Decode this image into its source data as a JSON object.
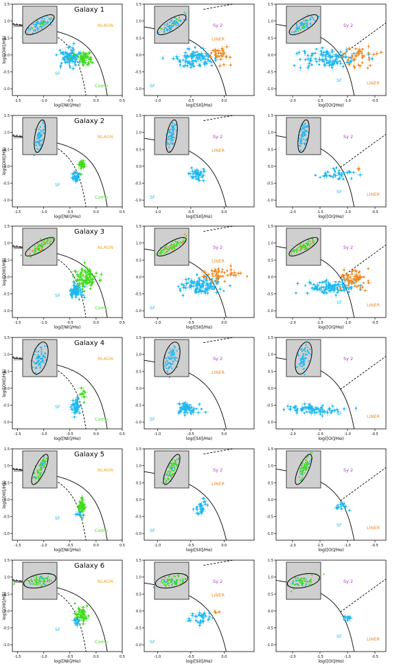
{
  "figure": {
    "colors": {
      "sf": "#1fb8f0",
      "comp": "#3ddc1a",
      "agn": "#f08a24",
      "sy2": "#b12fd6",
      "nlagn_text": "#f2a71b",
      "inset_bg": "#cfcfcf"
    },
    "ylabel": "log([OIII]/Hβ)",
    "xlabels": [
      "log([NII]/Hα)",
      "log([SII]/Hα)",
      "log([OI]/Hα)"
    ],
    "region_labels": {
      "nii": [
        "NLAGN",
        "SF",
        "Comp"
      ],
      "sii": [
        "Sy 2",
        "LINER",
        "SF"
      ],
      "oi": [
        "Sy 2",
        "LINER",
        "SF"
      ]
    },
    "ytick_labels": [
      "1.5",
      "1.0",
      "0.5",
      "0.0",
      "-0.5",
      "-1.0"
    ],
    "xtick_labels": {
      "nii": [
        "-1.5",
        "-1.0",
        "-0.5",
        "0.0",
        "0.5"
      ],
      "sii": [
        "-1.0",
        "-0.5",
        "0.0"
      ],
      "oi": [
        "-2.0",
        "-1.5",
        "-1.0",
        "-0.5"
      ]
    },
    "galaxies": [
      "Galaxy 1",
      "Galaxy 2",
      "Galaxy 3",
      "Galaxy 4",
      "Galaxy 5",
      "Galaxy 6"
    ]
  },
  "chart_data": {
    "type": "scatter",
    "layout": "6 rows (galaxies) x 3 columns (BPT diagrams)",
    "xlim": {
      "nii": [
        -1.6,
        0.5
      ],
      "sii": [
        -1.2,
        0.45
      ],
      "oi": [
        -2.3,
        -0.3
      ]
    },
    "ylim": [
      -1.2,
      1.5
    ],
    "clusters": [
      [
        [
          {
            "cls": "sf",
            "cx": -0.48,
            "cy": -0.05,
            "sx": 0.1,
            "sy": 0.14,
            "n": 90
          },
          {
            "cls": "comp",
            "cx": -0.22,
            "cy": -0.1,
            "sx": 0.09,
            "sy": 0.1,
            "n": 45
          }
        ],
        [
          {
            "cls": "sf",
            "cx": -0.45,
            "cy": -0.12,
            "sx": 0.14,
            "sy": 0.14,
            "n": 100
          },
          {
            "cls": "agn",
            "cx": -0.05,
            "cy": 0.02,
            "sx": 0.1,
            "sy": 0.1,
            "n": 30
          }
        ],
        [
          {
            "cls": "sf",
            "cx": -1.35,
            "cy": -0.1,
            "sx": 0.25,
            "sy": 0.14,
            "n": 110
          },
          {
            "cls": "agn",
            "cx": -0.8,
            "cy": -0.05,
            "sx": 0.14,
            "sy": 0.15,
            "n": 40
          }
        ]
      ],
      [
        [
          {
            "cls": "sf",
            "cx": -0.38,
            "cy": -0.3,
            "sx": 0.04,
            "sy": 0.08,
            "n": 30
          },
          {
            "cls": "comp",
            "cx": -0.28,
            "cy": 0.05,
            "sx": 0.04,
            "sy": 0.1,
            "n": 20
          }
        ],
        [
          {
            "cls": "sf",
            "cx": -0.4,
            "cy": -0.25,
            "sx": 0.05,
            "sy": 0.1,
            "n": 40
          }
        ],
        [
          {
            "cls": "sf",
            "cx": -1.2,
            "cy": -0.25,
            "sx": 0.18,
            "sy": 0.1,
            "n": 40
          },
          {
            "cls": "agn",
            "cx": -0.8,
            "cy": -0.1,
            "sx": 0.04,
            "sy": 0.05,
            "n": 3
          }
        ]
      ],
      [
        [
          {
            "cls": "sf",
            "cx": -0.38,
            "cy": -0.4,
            "sx": 0.06,
            "sy": 0.1,
            "n": 70
          },
          {
            "cls": "comp",
            "cx": -0.2,
            "cy": -0.05,
            "sx": 0.1,
            "sy": 0.14,
            "n": 90
          }
        ],
        [
          {
            "cls": "sf",
            "cx": -0.35,
            "cy": -0.25,
            "sx": 0.15,
            "sy": 0.13,
            "n": 110
          },
          {
            "cls": "agn",
            "cx": -0.08,
            "cy": 0.08,
            "sx": 0.12,
            "sy": 0.11,
            "n": 45
          }
        ],
        [
          {
            "cls": "sf",
            "cx": -1.3,
            "cy": -0.3,
            "sx": 0.22,
            "sy": 0.1,
            "n": 110
          },
          {
            "cls": "agn",
            "cx": -0.85,
            "cy": -0.05,
            "sx": 0.14,
            "sy": 0.12,
            "n": 60
          }
        ]
      ],
      [
        [
          {
            "cls": "sf",
            "cx": -0.38,
            "cy": -0.55,
            "sx": 0.04,
            "sy": 0.12,
            "n": 50
          },
          {
            "cls": "comp",
            "cx": -0.26,
            "cy": -0.2,
            "sx": 0.04,
            "sy": 0.09,
            "n": 10
          }
        ],
        [
          {
            "cls": "sf",
            "cx": -0.55,
            "cy": -0.62,
            "sx": 0.09,
            "sy": 0.09,
            "n": 60
          }
        ],
        [
          {
            "cls": "sf",
            "cx": -1.65,
            "cy": -0.62,
            "sx": 0.25,
            "sy": 0.07,
            "n": 80
          }
        ]
      ],
      [
        [
          {
            "cls": "comp",
            "cx": -0.26,
            "cy": -0.2,
            "sx": 0.04,
            "sy": 0.1,
            "n": 40
          },
          {
            "cls": "sf",
            "cx": -0.3,
            "cy": -0.45,
            "sx": 0.05,
            "sy": 0.06,
            "n": 10
          }
        ],
        [
          {
            "cls": "sf",
            "cx": -0.35,
            "cy": -0.25,
            "sx": 0.05,
            "sy": 0.12,
            "n": 30
          }
        ],
        [
          {
            "cls": "sf",
            "cx": -1.1,
            "cy": -0.2,
            "sx": 0.05,
            "sy": 0.06,
            "n": 15
          }
        ]
      ],
      [
        [
          {
            "cls": "comp",
            "cx": -0.28,
            "cy": -0.1,
            "sx": 0.06,
            "sy": 0.12,
            "n": 45
          },
          {
            "cls": "sf",
            "cx": -0.35,
            "cy": -0.35,
            "sx": 0.04,
            "sy": 0.06,
            "n": 10
          }
        ],
        [
          {
            "cls": "sf",
            "cx": -0.35,
            "cy": -0.25,
            "sx": 0.1,
            "sy": 0.1,
            "n": 35
          },
          {
            "cls": "agn",
            "cx": -0.1,
            "cy": 0.0,
            "sx": 0.04,
            "sy": 0.04,
            "n": 3
          }
        ],
        [
          {
            "cls": "sf",
            "cx": -1.0,
            "cy": -0.22,
            "sx": 0.05,
            "sy": 0.05,
            "n": 10
          }
        ]
      ]
    ],
    "insets": [
      {
        "angle": -32,
        "pts": "sf",
        "aspect": 0.35,
        "extra": "comp"
      },
      {
        "angle": -80,
        "pts": "sf",
        "aspect": 0.3,
        "extra": "none"
      },
      {
        "angle": -30,
        "pts": "comp",
        "aspect": 0.3,
        "extra": "agn"
      },
      {
        "angle": -75,
        "pts": "sf",
        "aspect": 0.45,
        "extra": "none"
      },
      {
        "angle": -65,
        "pts": "comp",
        "aspect": 0.3,
        "extra": "sf"
      },
      {
        "angle": -12,
        "pts": "comp",
        "aspect": 0.4,
        "extra": "sf"
      }
    ]
  }
}
